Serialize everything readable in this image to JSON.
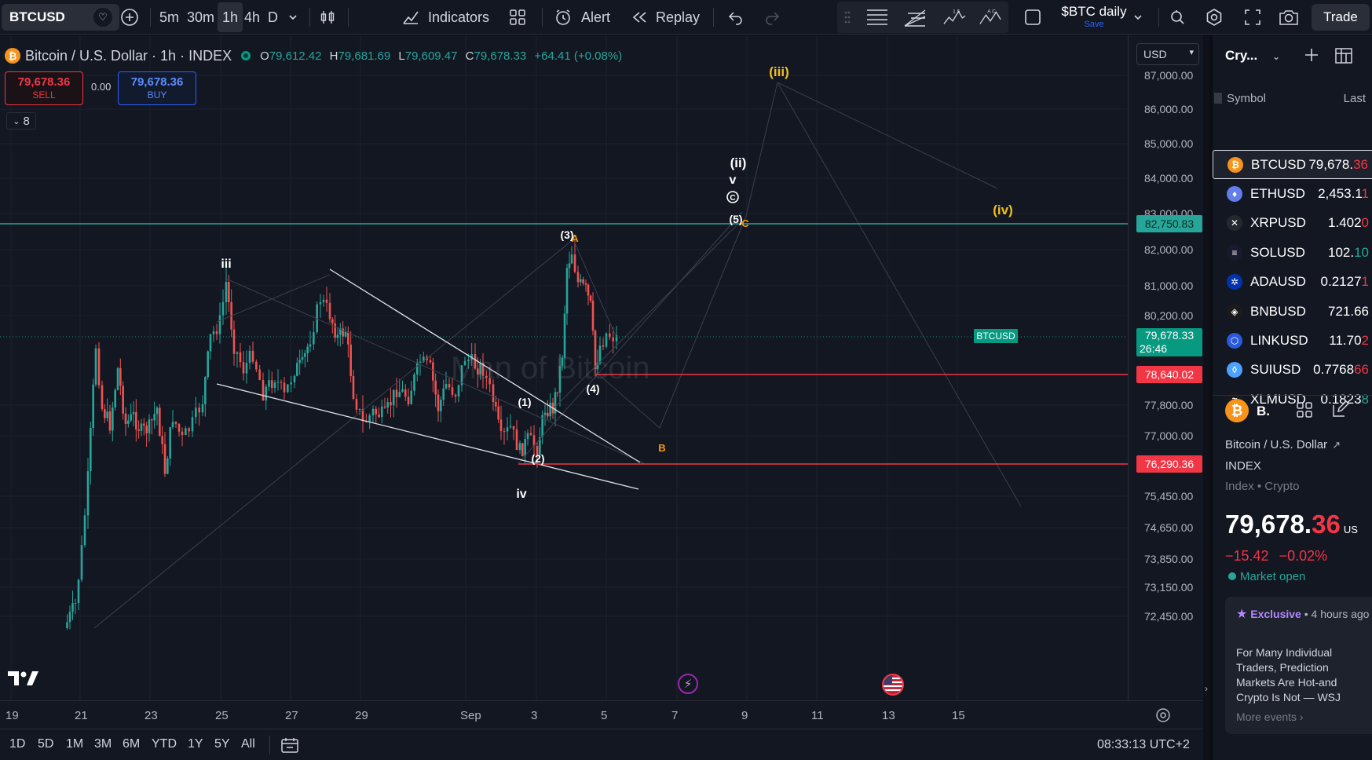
{
  "toolbar": {
    "symbol": "BTCUSD",
    "timeframes": [
      "5m",
      "30m",
      "1h",
      "4h",
      "D"
    ],
    "active_timeframe": "1h",
    "indicators_label": "Indicators",
    "alert_label": "Alert",
    "replay_label": "Replay",
    "layout_name": "$BTC daily",
    "layout_save": "Save",
    "trade_label": "Trade",
    "wave_icon_labels": [
      "1 5",
      "A C"
    ]
  },
  "legend": {
    "title": "Bitcoin / U.S. Dollar · 1h · INDEX",
    "o_label": "O",
    "o": "79,612.42",
    "h_label": "H",
    "h": "79,681.69",
    "l_label": "L",
    "l": "79,609.47",
    "c_label": "C",
    "c": "79,678.33",
    "change": "+64.41 (+0.08%)",
    "sell_price": "79,678.36",
    "sell_label": "SELL",
    "spread": "0.00",
    "buy_price": "79,678.36",
    "buy_label": "BUY",
    "indicator_count": "8"
  },
  "currency": "USD",
  "watermark": "Man of Bitcoin",
  "chart_data": {
    "type": "candlestick",
    "x_ticks": [
      "19",
      "21",
      "23",
      "25",
      "27",
      "29",
      "Sep",
      "3",
      "5",
      "7",
      "9",
      "11",
      "13",
      "15"
    ],
    "y_ticks": [
      "87,000.00",
      "86,000.00",
      "85,000.00",
      "84,000.00",
      "83,000.00",
      "82,000.00",
      "81,000.00",
      "80,200.00",
      "77,800.00",
      "77,000.00",
      "75,450.00",
      "74,650.00",
      "73,850.00",
      "73,150.00",
      "72,450.00"
    ],
    "horizontal_levels": [
      {
        "price": "82,750.83",
        "color": "#26a69a"
      },
      {
        "price": "78,640.02",
        "color": "#f23645"
      },
      {
        "price": "76,290.36",
        "color": "#f23645"
      }
    ],
    "last_price": {
      "symbol": "BTCUSD",
      "price": "79,678.33",
      "countdown": "26:46"
    },
    "wave_labels": [
      "iii",
      "iv",
      "(1)",
      "(2)",
      "(3)",
      "(4)",
      "(5)",
      "A",
      "B",
      "C",
      "v",
      "(ii)",
      "(iii)",
      "(iv)"
    ]
  },
  "bottom": {
    "ranges": [
      "1D",
      "5D",
      "1M",
      "3M",
      "6M",
      "YTD",
      "1Y",
      "5Y",
      "All"
    ],
    "clock": "08:33:13 UTC+2"
  },
  "right_panel": {
    "list_name": "Cry...",
    "col_symbol": "Symbol",
    "col_last": "Last",
    "watchlist": [
      {
        "symbol": "BTCUSD",
        "last_main": "79,678.",
        "last_tail": "36",
        "tail_color": "#f23645",
        "icon_color": "#f7931a",
        "icon": "₿"
      },
      {
        "symbol": "ETHUSD",
        "last_main": "2,453.1",
        "last_tail": "1",
        "tail_color": "#f23645",
        "icon_color": "#627eea",
        "icon": "♦"
      },
      {
        "symbol": "XRPUSD",
        "last_main": "1.402",
        "last_tail": "0",
        "tail_color": "#f23645",
        "icon_color": "#23292f",
        "icon": "✕"
      },
      {
        "symbol": "SOLUSD",
        "last_main": "102.",
        "last_tail": "10",
        "tail_color": "#26a69a",
        "icon_color": "#1a1a2e",
        "icon": "≡"
      },
      {
        "symbol": "ADAUSD",
        "last_main": "0.2127",
        "last_tail": "1",
        "tail_color": "#f23645",
        "icon_color": "#0033ad",
        "icon": "✲"
      },
      {
        "symbol": "BNBUSD",
        "last_main": "721.66",
        "last_tail": "",
        "tail_color": "#26a69a",
        "icon_color": "#1a1a1a",
        "icon": "◈"
      },
      {
        "symbol": "LINKUSD",
        "last_main": "11.70",
        "last_tail": "2",
        "tail_color": "#f23645",
        "icon_color": "#2a5ada",
        "icon": "⬡"
      },
      {
        "symbol": "SUIUSD",
        "last_main": "0.7768",
        "last_tail": "66",
        "tail_color": "#f23645",
        "icon_color": "#4da2ff",
        "icon": "◊"
      },
      {
        "symbol": "XLMUSD",
        "last_main": "0.1823",
        "last_tail": "8",
        "tail_color": "#26a69a",
        "icon_color": "#1a1a1a",
        "icon": "≈"
      }
    ],
    "detail": {
      "short": "B.",
      "name": "Bitcoin / U.S. Dollar",
      "exchange": "INDEX",
      "type": "Index • Crypto",
      "price_main": "79,678.",
      "price_tail": "36",
      "price_suffix": "US",
      "change": "−15.42",
      "change_pct": "−0.02%",
      "status": "Market open"
    },
    "news": {
      "tag": "Exclusive",
      "time": "• 4 hours ago",
      "headline": "For Many Individual Traders, Prediction Markets Are Hot-and Crypto Is Not — WSJ",
      "more": "More events ›"
    }
  }
}
